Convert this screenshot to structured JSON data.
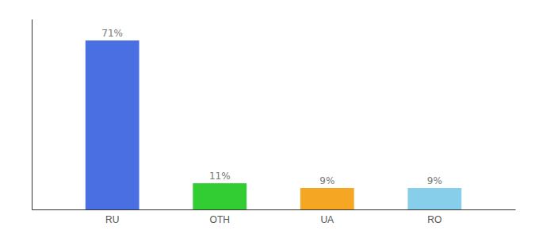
{
  "chart_data": {
    "type": "bar",
    "categories": [
      "RU",
      "OTH",
      "UA",
      "RO"
    ],
    "values": [
      71,
      11,
      9,
      9
    ],
    "value_labels": [
      "71%",
      "11%",
      "9%",
      "9%"
    ],
    "colors": [
      "#4A6FE3",
      "#32CD32",
      "#F5A623",
      "#87CEEB"
    ],
    "ylim": [
      0,
      80
    ],
    "yticks": [],
    "grid": false,
    "data_labels": true,
    "tick_labels": "x"
  }
}
